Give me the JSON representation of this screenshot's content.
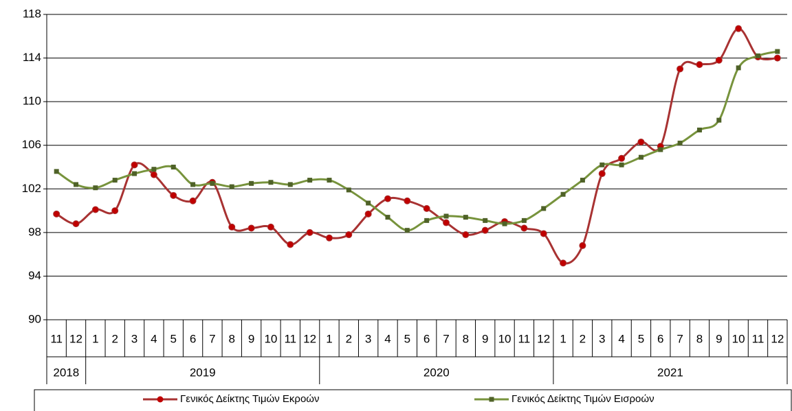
{
  "chart_data": {
    "type": "line",
    "categories": [
      "11",
      "12",
      "1",
      "2",
      "3",
      "4",
      "5",
      "6",
      "7",
      "8",
      "9",
      "10",
      "11",
      "12",
      "1",
      "2",
      "3",
      "4",
      "5",
      "6",
      "7",
      "8",
      "9",
      "10",
      "11",
      "12",
      "1",
      "2",
      "3",
      "4",
      "5",
      "6",
      "7",
      "8",
      "9",
      "10",
      "11",
      "12"
    ],
    "years": [
      "2018",
      "2019",
      "2020",
      "2021"
    ],
    "series": [
      {
        "name": "Γενικός Δείκτης Τιμών Εκροών",
        "color": "#a83232",
        "marker_color": "#c00000",
        "values": [
          99.7,
          98.8,
          100.1,
          100.0,
          104.2,
          103.3,
          101.4,
          100.9,
          102.6,
          98.5,
          98.4,
          98.5,
          96.9,
          98.0,
          97.5,
          97.8,
          99.7,
          101.1,
          100.9,
          100.2,
          98.9,
          97.8,
          98.2,
          99.0,
          98.4,
          97.9,
          95.2,
          96.8,
          103.4,
          104.8,
          106.3,
          105.9,
          113.0,
          113.4,
          113.8,
          116.7,
          114.1,
          114.0
        ]
      },
      {
        "name": "Γενικός Δείκτης Τιμών Εισροών",
        "color": "#77933c",
        "marker_color": "#4f6228",
        "values": [
          103.6,
          102.4,
          102.1,
          102.8,
          103.4,
          103.8,
          104.0,
          102.4,
          102.5,
          102.2,
          102.5,
          102.6,
          102.4,
          102.8,
          102.8,
          101.9,
          100.7,
          99.4,
          98.2,
          99.1,
          99.5,
          99.4,
          99.1,
          98.8,
          99.1,
          100.2,
          101.5,
          102.8,
          104.2,
          104.2,
          104.9,
          105.6,
          106.2,
          107.4,
          108.3,
          113.1,
          114.2,
          114.6
        ]
      }
    ],
    "ylim": [
      90,
      118
    ],
    "yticks": [
      90,
      94,
      98,
      102,
      106,
      110,
      114,
      118
    ],
    "grid": true,
    "legend": "bottom"
  }
}
